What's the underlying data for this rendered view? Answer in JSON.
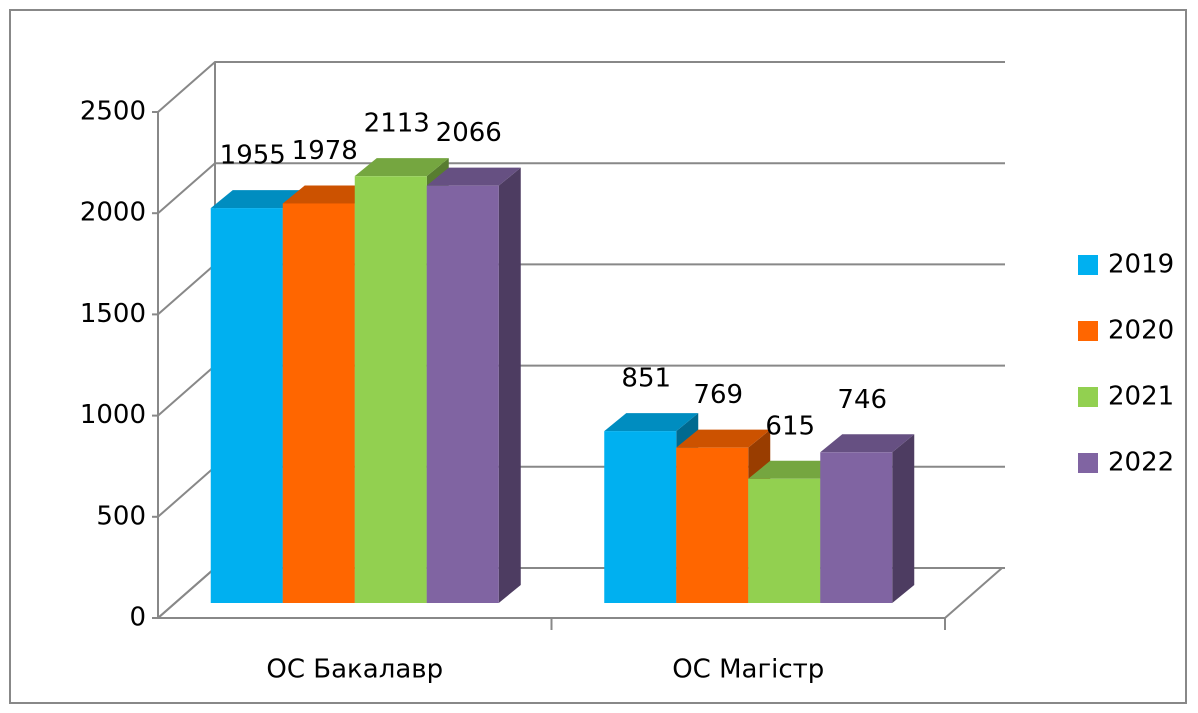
{
  "chart_data": {
    "type": "bar3d",
    "categories": [
      "ОС Бакалавр",
      "ОС Магістр"
    ],
    "series": [
      {
        "name": "2019",
        "color": "#00b0f0",
        "values": [
          1955,
          851
        ]
      },
      {
        "name": "2020",
        "color": "#ff6600",
        "values": [
          1978,
          769
        ]
      },
      {
        "name": "2021",
        "color": "#92d050",
        "values": [
          2113,
          615
        ]
      },
      {
        "name": "2022",
        "color": "#8064a2",
        "values": [
          2066,
          746
        ]
      }
    ],
    "ylim": [
      0,
      2500
    ],
    "yticks": [
      0,
      500,
      1000,
      1500,
      2000,
      2500
    ],
    "grid": true,
    "legend": "right"
  }
}
